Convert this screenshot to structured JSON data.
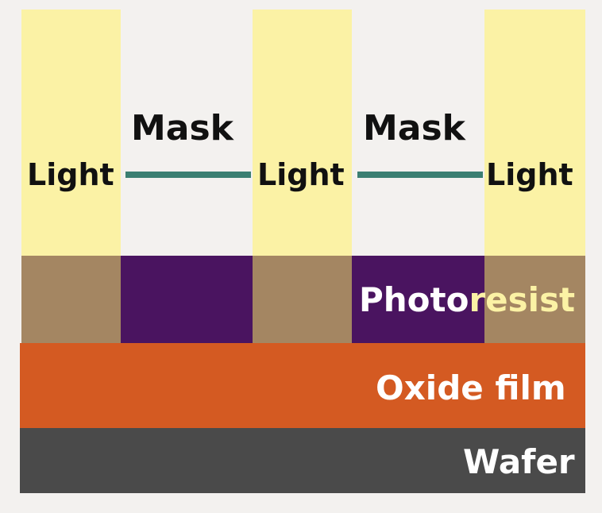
{
  "light_label": "Light",
  "mask_label": "Mask",
  "layers": {
    "photoresist_part1": "Photo",
    "photoresist_part2": "resist",
    "oxide": "Oxide film",
    "wafer": "Wafer"
  },
  "colors": {
    "light": "#fbf2a5",
    "mask": "#3b7f72",
    "photoresist_exposed": "#a48662",
    "photoresist_masked": "#4a1460",
    "oxide": "#d45a22",
    "wafer": "#4a4a4a",
    "background": "#f3f1ef"
  }
}
